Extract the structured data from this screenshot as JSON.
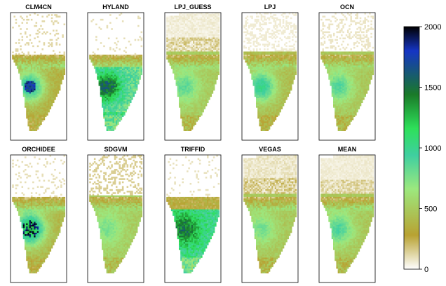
{
  "chart_data": {
    "type": "heatmap",
    "description_free": true,
    "panels": [
      {
        "title": "CLM4CN",
        "pattern": "clm"
      },
      {
        "title": "HYLAND",
        "pattern": "hyland"
      },
      {
        "title": "LPJ_GUESS",
        "pattern": "guess"
      },
      {
        "title": "LPJ",
        "pattern": "lpj"
      },
      {
        "title": "OCN",
        "pattern": "ocn"
      },
      {
        "title": "ORCHIDEE",
        "pattern": "orchidee"
      },
      {
        "title": "SDGVM",
        "pattern": "sdgvm"
      },
      {
        "title": "TRIFFID",
        "pattern": "triffid"
      },
      {
        "title": "VEGAS",
        "pattern": "vegas"
      },
      {
        "title": "MEAN",
        "pattern": "mean"
      }
    ],
    "colorbar": {
      "range": [
        0,
        2000
      ],
      "ticks": [
        0,
        500,
        1000,
        1500,
        2000
      ],
      "colors": [
        "#ffffff",
        "#b8a232",
        "#9ce87e",
        "#3fcfa0",
        "#2ee05a",
        "#1a7a28",
        "#1535c4",
        "#000000"
      ],
      "stops": [
        0,
        0.14,
        0.33,
        0.47,
        0.58,
        0.72,
        0.9,
        1
      ]
    },
    "grid": false,
    "legend": "right"
  }
}
